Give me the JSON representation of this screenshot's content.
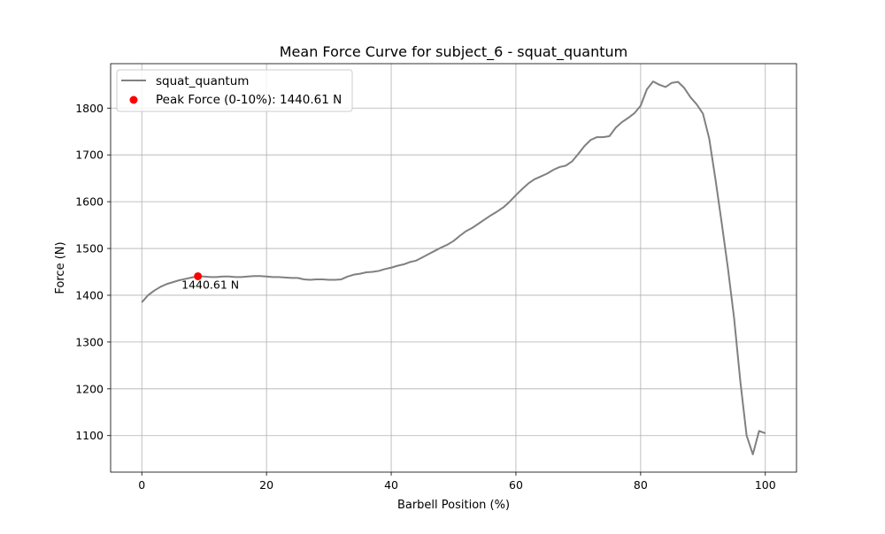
{
  "chart_data": {
    "type": "line",
    "title": "Mean Force Curve for subject_6 - squat_quantum",
    "xlabel": "Barbell Position (%)",
    "ylabel": "Force (N)",
    "xlim": [
      -5,
      105
    ],
    "ylim": [
      1022,
      1895
    ],
    "xticks": [
      0,
      20,
      40,
      60,
      80,
      100
    ],
    "yticks": [
      1100,
      1200,
      1300,
      1400,
      1500,
      1600,
      1700,
      1800
    ],
    "grid": true,
    "legend_position": "top-left",
    "series": [
      {
        "name": "squat_quantum",
        "color": "#808080",
        "x": [
          0,
          1,
          2,
          3,
          4,
          5,
          6,
          7,
          8,
          9,
          10,
          11,
          12,
          13,
          14,
          15,
          16,
          17,
          18,
          19,
          20,
          21,
          22,
          23,
          24,
          25,
          26,
          27,
          28,
          29,
          30,
          31,
          32,
          33,
          34,
          35,
          36,
          37,
          38,
          39,
          40,
          41,
          42,
          43,
          44,
          45,
          46,
          47,
          48,
          49,
          50,
          51,
          52,
          53,
          54,
          55,
          56,
          57,
          58,
          59,
          60,
          61,
          62,
          63,
          64,
          65,
          66,
          67,
          68,
          69,
          70,
          71,
          72,
          73,
          74,
          75,
          76,
          77,
          78,
          79,
          80,
          81,
          82,
          83,
          84,
          85,
          86,
          87,
          88,
          89,
          90,
          91,
          92,
          93,
          94,
          95,
          96,
          97,
          98,
          99,
          100
        ],
        "y": [
          1385,
          1400,
          1410,
          1418,
          1424,
          1428,
          1432,
          1435,
          1438,
          1440.61,
          1440,
          1439,
          1439,
          1440,
          1440,
          1439,
          1439,
          1440,
          1441,
          1441,
          1440,
          1439,
          1439,
          1438,
          1437,
          1437,
          1434,
          1433,
          1434,
          1434,
          1433,
          1433,
          1434,
          1440,
          1444,
          1446,
          1449,
          1450,
          1452,
          1456,
          1459,
          1463,
          1466,
          1471,
          1474,
          1481,
          1488,
          1495,
          1502,
          1508,
          1516,
          1527,
          1537,
          1544,
          1553,
          1562,
          1571,
          1579,
          1588,
          1600,
          1614,
          1627,
          1639,
          1648,
          1654,
          1660,
          1668,
          1674,
          1677,
          1686,
          1702,
          1719,
          1732,
          1738,
          1738,
          1740,
          1758,
          1770,
          1779,
          1789,
          1805,
          1840,
          1857,
          1850,
          1845,
          1854,
          1856,
          1843,
          1823,
          1808,
          1788,
          1735,
          1648,
          1555,
          1458,
          1350,
          1215,
          1100,
          1060,
          1110,
          1105
        ]
      },
      {
        "name": "Peak Force (0-10%): 1440.61 N",
        "type": "scatter",
        "color": "#ff0000",
        "x": [
          9
        ],
        "y": [
          1440.61
        ]
      }
    ],
    "annotations": [
      {
        "text": "1440.61 N",
        "x": 9,
        "y": 1440.61
      }
    ]
  }
}
